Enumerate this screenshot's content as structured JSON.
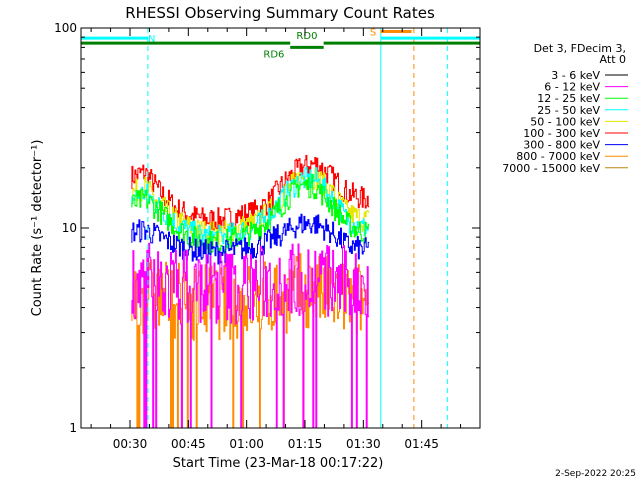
{
  "chart_data": {
    "type": "line",
    "title": "RHESSI Observing Summary Count Rates",
    "xlabel": "Start Time (23-Mar-18 00:17:22)",
    "ylabel": "Count Rate (s⁻¹ detector⁻¹)",
    "yscale": "log",
    "ylim": [
      1,
      100
    ],
    "xlim_minutes": [
      17.4,
      120
    ],
    "x_ticks": [
      {
        "minute": 30,
        "label": "00:30"
      },
      {
        "minute": 45,
        "label": "00:45"
      },
      {
        "minute": 60,
        "label": "01:00"
      },
      {
        "minute": 75,
        "label": "01:15"
      },
      {
        "minute": 90,
        "label": "01:30"
      },
      {
        "minute": 105,
        "label": "01:45"
      }
    ],
    "y_ticks": [
      {
        "value": 1,
        "label": "1"
      },
      {
        "value": 10,
        "label": "10"
      },
      {
        "value": 100,
        "label": "100"
      }
    ],
    "legend": {
      "header": [
        "Det 3, FDecim 3,",
        "Att 0"
      ],
      "placement": "right",
      "entries": [
        {
          "label": "3 - 6 keV",
          "color": "#000000"
        },
        {
          "label": "6 - 12 keV",
          "color": "#ff00ff"
        },
        {
          "label": "12 - 25 keV",
          "color": "#00ff00"
        },
        {
          "label": "25 - 50 keV",
          "color": "#00ffff"
        },
        {
          "label": "50 - 100 keV",
          "color": "#e6e600"
        },
        {
          "label": "100 - 300 keV",
          "color": "#ff0000"
        },
        {
          "label": "300 - 800 keV",
          "color": "#0000ff"
        },
        {
          "label": "800 - 7000 keV",
          "color": "#ff8c00"
        },
        {
          "label": "7000 - 15000 keV",
          "color": "#b8860b"
        }
      ]
    },
    "data_window_minutes": [
      30.5,
      91.5
    ],
    "series": [
      {
        "label": "100 - 300 keV",
        "color": "#ff0000",
        "values_at_minutes": {
          "x": [
            30.5,
            34,
            38,
            42,
            46,
            50,
            54,
            58,
            62,
            66,
            70,
            74,
            78,
            82,
            86,
            90,
            91.5
          ],
          "y": [
            18,
            19,
            15,
            12.5,
            11.5,
            11,
            11,
            11.5,
            12,
            13.5,
            17,
            20,
            21,
            18,
            15,
            14,
            14
          ]
        }
      },
      {
        "label": "50 - 100 keV",
        "color": "#e6e600",
        "values_at_minutes": {
          "x": [
            30.5,
            34,
            38,
            42,
            46,
            50,
            54,
            58,
            62,
            66,
            70,
            74,
            78,
            82,
            86,
            90,
            91.5
          ],
          "y": [
            15,
            16,
            13,
            11,
            10,
            9.5,
            9.5,
            10,
            10.5,
            12,
            15,
            18,
            18,
            15,
            12,
            11,
            11
          ]
        }
      },
      {
        "label": "25 - 50 keV",
        "color": "#00ffff",
        "values_at_minutes": {
          "x": [
            30.5,
            34,
            38,
            42,
            46,
            50,
            54,
            58,
            62,
            66,
            70,
            74,
            78,
            82,
            86,
            90,
            91.5
          ],
          "y": [
            14,
            15,
            12.5,
            10.5,
            9.5,
            9,
            9,
            9.5,
            10,
            11.5,
            14.5,
            17.5,
            17.5,
            14,
            11,
            10,
            10
          ]
        }
      },
      {
        "label": "12 - 25 keV",
        "color": "#00ff00",
        "values_at_minutes": {
          "x": [
            30.5,
            34,
            38,
            42,
            46,
            50,
            54,
            58,
            62,
            66,
            70,
            74,
            78,
            82,
            86,
            90,
            91.5
          ],
          "y": [
            13,
            14,
            12,
            10,
            9,
            8.5,
            8.5,
            9,
            9.5,
            11,
            13.5,
            16.5,
            16,
            13,
            10.5,
            9.5,
            9.5
          ]
        }
      },
      {
        "label": "300 - 800 keV",
        "color": "#0000ff",
        "values_at_minutes": {
          "x": [
            30.5,
            34,
            38,
            42,
            46,
            50,
            54,
            58,
            62,
            66,
            70,
            74,
            78,
            82,
            86,
            90,
            91.5
          ],
          "y": [
            9.5,
            9.8,
            9,
            8.2,
            7.8,
            7.6,
            7.6,
            7.8,
            8,
            8.6,
            9.5,
            10.5,
            10.5,
            9.5,
            8.2,
            7.8,
            7.8
          ]
        }
      },
      {
        "label": "800 - 7000 keV",
        "color": "#ff8c00",
        "values_at_minutes": {
          "x": [
            30.5,
            34,
            38,
            42,
            46,
            50,
            54,
            58,
            62,
            66,
            70,
            74,
            78,
            82,
            86,
            90,
            91.5
          ],
          "y": [
            4.5,
            4.6,
            4.5,
            4.4,
            4.3,
            4.3,
            4.3,
            4.3,
            4.4,
            4.5,
            4.6,
            4.8,
            4.8,
            4.6,
            4.4,
            4.3,
            4.3
          ]
        }
      },
      {
        "label": "6 - 12 keV",
        "color": "#ff00ff",
        "values_at_minutes": {
          "x": [
            30.5,
            34,
            38,
            42,
            46,
            50,
            54,
            58,
            62,
            66,
            70,
            74,
            78,
            82,
            86,
            90,
            91.5
          ],
          "y": [
            5.5,
            5.5,
            5.3,
            5.2,
            5.1,
            5.1,
            5.1,
            5.1,
            5.2,
            5.3,
            5.4,
            5.6,
            5.6,
            5.4,
            5.2,
            5.1,
            5.1
          ]
        }
      }
    ],
    "attenuator_bars": [
      {
        "label": "N",
        "color": "#00ffff",
        "x_minutes": [
          17.4,
          34.6
        ],
        "y_value": 89,
        "label_at_minute": 35.6
      },
      {
        "label": "",
        "color": "#00ffff",
        "x_minutes": [
          94.5,
          120
        ],
        "y_value": 89
      },
      {
        "label": "S",
        "color": "#ff8c00",
        "x_minutes": [
          94.4,
          102.4
        ],
        "y_value": 96,
        "label_at_minute": 92.5
      },
      {
        "label": "RD0",
        "color": "#008000",
        "x_minutes": [
          17.4,
          71.2
        ],
        "y_value": 84,
        "label_at_minute": 75.5,
        "label_above": true
      },
      {
        "label": "",
        "color": "#008000",
        "x_minutes": [
          79.8,
          120
        ],
        "y_value": 84
      },
      {
        "label": "RD6",
        "color": "#008000",
        "x_minutes": [
          71.2,
          79.8
        ],
        "y_value": 80,
        "label_at_minute": 67,
        "label_above": false
      }
    ],
    "vertical_lines": [
      {
        "minute": 17.4,
        "color": "#00ffff",
        "style": "solid"
      },
      {
        "minute": 34.6,
        "color": "#00ffff",
        "style": "dashed"
      },
      {
        "minute": 94.5,
        "color": "#00ffff",
        "style": "solid"
      },
      {
        "minute": 103,
        "color": "#ff8c00",
        "style": "dashed"
      },
      {
        "minute": 111.6,
        "color": "#00ffff",
        "style": "dashed"
      }
    ]
  },
  "timestamp": "2-Sep-2022 20:25"
}
